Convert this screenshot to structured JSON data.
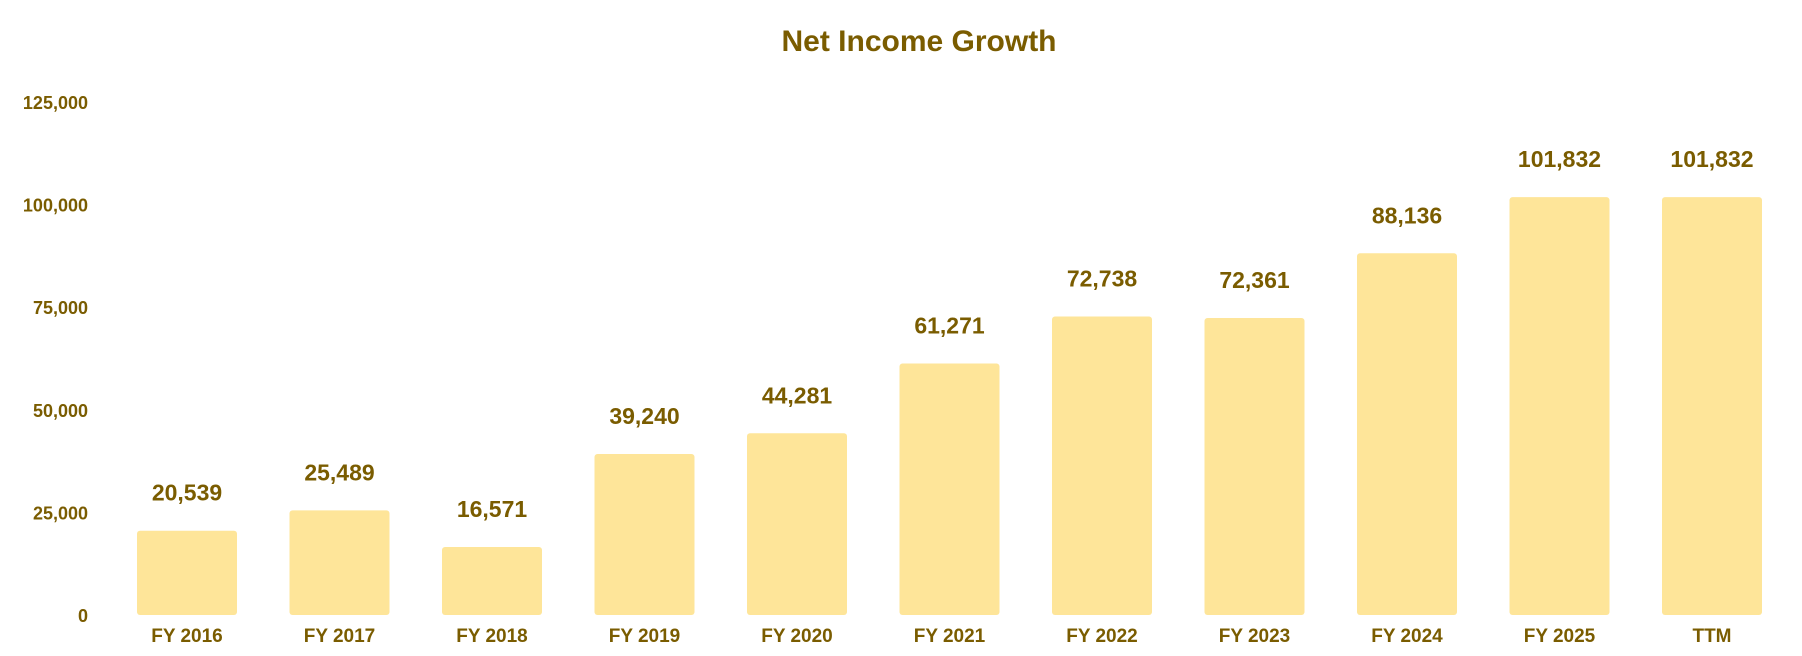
{
  "colors": {
    "text": "#7a5c00",
    "bar": "#fee599",
    "background": "#ffffff"
  },
  "chart_data": {
    "type": "bar",
    "title": "Net Income Growth",
    "xlabel": "",
    "ylabel": "",
    "categories": [
      "FY 2016",
      "FY 2017",
      "FY 2018",
      "FY 2019",
      "FY 2020",
      "FY 2021",
      "FY 2022",
      "FY 2023",
      "FY 2024",
      "FY 2025",
      "TTM"
    ],
    "values": [
      20539,
      25489,
      16571,
      39240,
      44281,
      61271,
      72738,
      72361,
      88136,
      101832,
      101832
    ],
    "value_labels": [
      "20,539",
      "25,489",
      "16,571",
      "39,240",
      "44,281",
      "61,271",
      "72,738",
      "72,361",
      "88,136",
      "101,832",
      "101,832"
    ],
    "ylim": [
      0,
      125000
    ],
    "yticks": [
      0,
      25000,
      50000,
      75000,
      100000,
      125000
    ],
    "ytick_labels": [
      "0",
      "25,000",
      "50,000",
      "75,000",
      "100,000",
      "125,000"
    ],
    "grid": false,
    "legend": "none"
  }
}
